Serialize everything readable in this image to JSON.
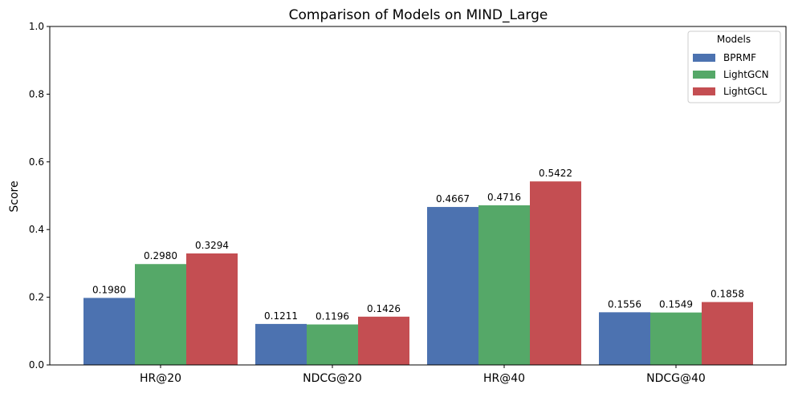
{
  "chart_data": {
    "type": "bar",
    "title": "Comparison of Models on MIND_Large",
    "xlabel": "",
    "ylabel": "Score",
    "ylim": [
      0,
      1.0
    ],
    "yticks": [
      "0.0",
      "0.2",
      "0.4",
      "0.6",
      "0.8",
      "1.0"
    ],
    "categories": [
      "HR@20",
      "NDCG@20",
      "HR@40",
      "NDCG@40"
    ],
    "series": [
      {
        "name": "BPRMF",
        "color": "#4c72b0",
        "values": [
          0.198,
          0.1211,
          0.4667,
          0.1556
        ],
        "labels": [
          "0.1980",
          "0.1211",
          "0.4667",
          "0.1556"
        ]
      },
      {
        "name": "LightGCN",
        "color": "#55a868",
        "values": [
          0.298,
          0.1196,
          0.4716,
          0.1549
        ],
        "labels": [
          "0.2980",
          "0.1196",
          "0.4716",
          "0.1549"
        ]
      },
      {
        "name": "LightGCL",
        "color": "#c44e52",
        "values": [
          0.3294,
          0.1426,
          0.5422,
          0.1858
        ],
        "labels": [
          "0.3294",
          "0.1426",
          "0.5422",
          "0.1858"
        ]
      }
    ],
    "legend": {
      "title": "Models",
      "placement": "top-right"
    },
    "grid": false
  }
}
